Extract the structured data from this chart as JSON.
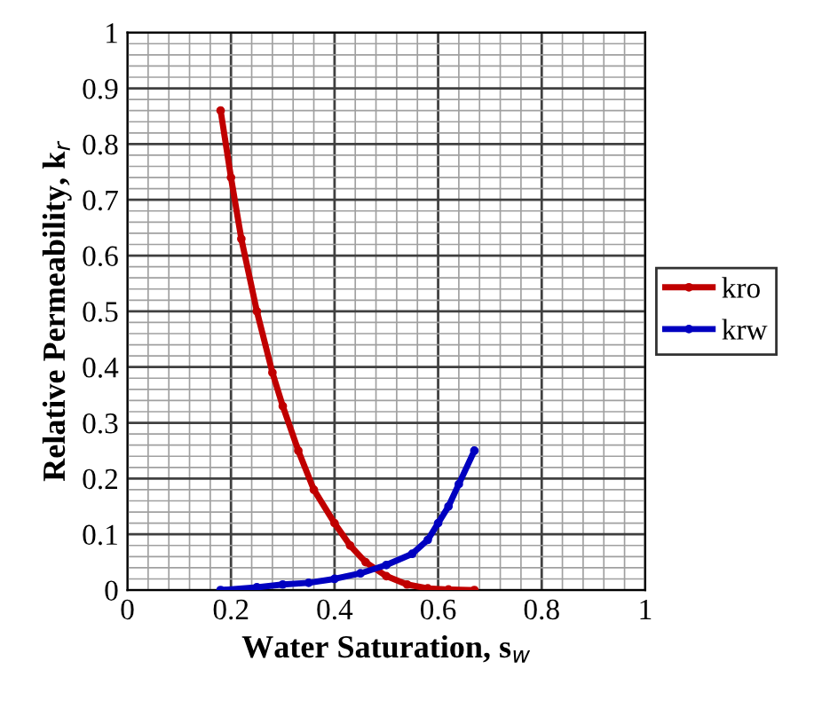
{
  "chart_data": {
    "type": "line",
    "xlabel": "Water Saturation, s$_{w}$",
    "ylabel": "Relative Permeability, k$_{r}$",
    "xlim": [
      0,
      1
    ],
    "ylim": [
      0,
      1
    ],
    "xticks": [
      0,
      0.2,
      0.4,
      0.6,
      0.8,
      1
    ],
    "yticks": [
      0,
      0.1,
      0.2,
      0.3,
      0.4,
      0.5,
      0.6,
      0.7,
      0.8,
      0.9,
      1
    ],
    "grid": true,
    "legend": "right",
    "marker": "circle",
    "line_style": "solid",
    "series": [
      {
        "name": "kro",
        "color": "#c00000",
        "x": [
          0.18,
          0.2,
          0.22,
          0.25,
          0.28,
          0.3,
          0.33,
          0.36,
          0.4,
          0.43,
          0.46,
          0.5,
          0.54,
          0.58,
          0.62,
          0.67
        ],
        "values": [
          0.86,
          0.74,
          0.63,
          0.5,
          0.39,
          0.33,
          0.25,
          0.18,
          0.12,
          0.08,
          0.05,
          0.025,
          0.01,
          0.003,
          0.001,
          0
        ]
      },
      {
        "name": "krw",
        "color": "#0000c0",
        "x": [
          0.18,
          0.25,
          0.3,
          0.35,
          0.4,
          0.45,
          0.5,
          0.55,
          0.58,
          0.6,
          0.62,
          0.64,
          0.67
        ],
        "values": [
          0,
          0.005,
          0.01,
          0.013,
          0.02,
          0.03,
          0.045,
          0.065,
          0.09,
          0.12,
          0.15,
          0.19,
          0.25
        ]
      }
    ]
  }
}
